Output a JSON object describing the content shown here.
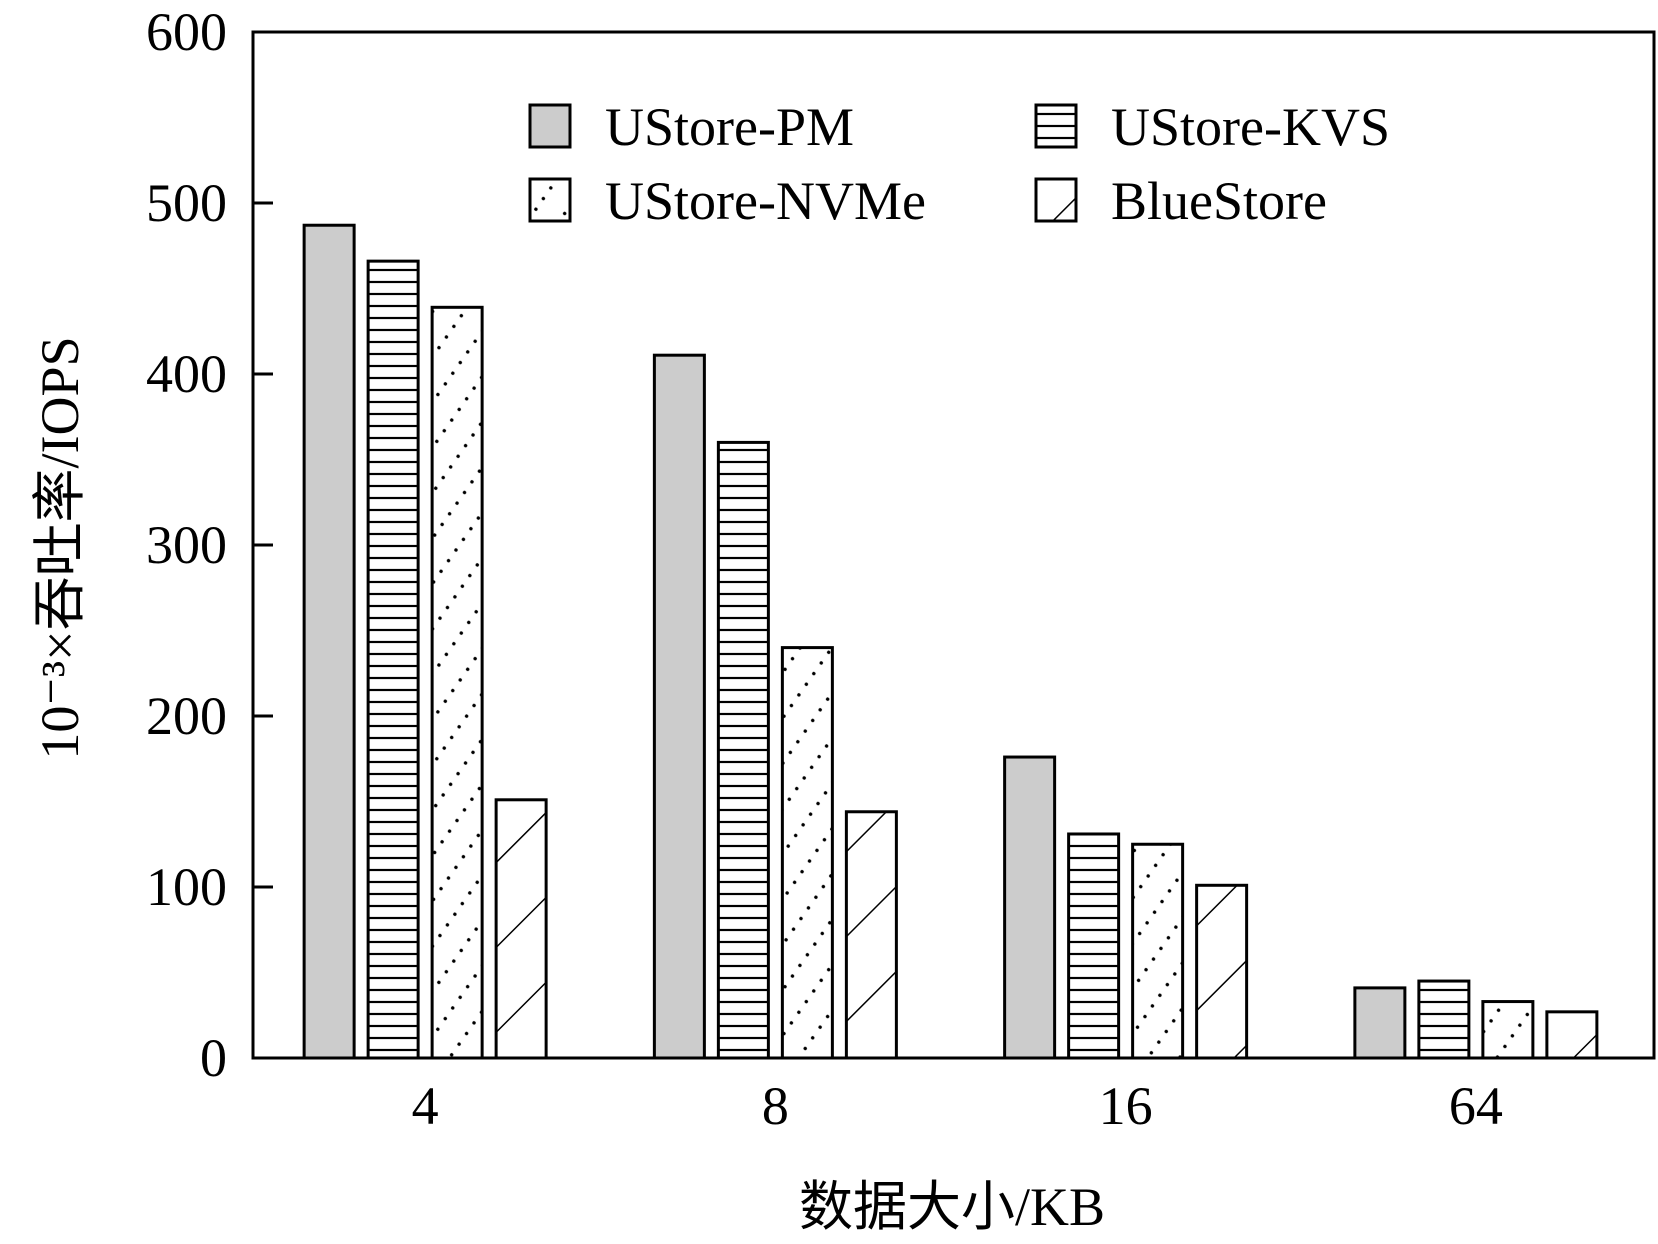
{
  "chart_data": {
    "type": "bar",
    "title": "",
    "xlabel": "数据大小/KB",
    "ylabel": "10⁻³×吞吐率/IOPS",
    "categories": [
      "4",
      "8",
      "16",
      "64"
    ],
    "ylim": [
      0,
      600
    ],
    "yticks": [
      "0",
      "100",
      "200",
      "300",
      "400",
      "500",
      "600"
    ],
    "grid": false,
    "legend_position": "top-center",
    "series": [
      {
        "name": "UStore-PM",
        "pattern": "solid-gray",
        "values": [
          487,
          411,
          176,
          41
        ]
      },
      {
        "name": "UStore-KVS",
        "pattern": "horizontal-lines",
        "values": [
          466,
          360,
          131,
          45
        ]
      },
      {
        "name": "UStore-NVMe",
        "pattern": "dots",
        "values": [
          439,
          240,
          125,
          33
        ]
      },
      {
        "name": "BlueStore",
        "pattern": "diagonal-lines",
        "values": [
          151,
          144,
          101,
          27
        ]
      }
    ],
    "colors": {
      "gray_fill": "#cccccc",
      "stroke": "#000000",
      "background": "#ffffff"
    }
  }
}
